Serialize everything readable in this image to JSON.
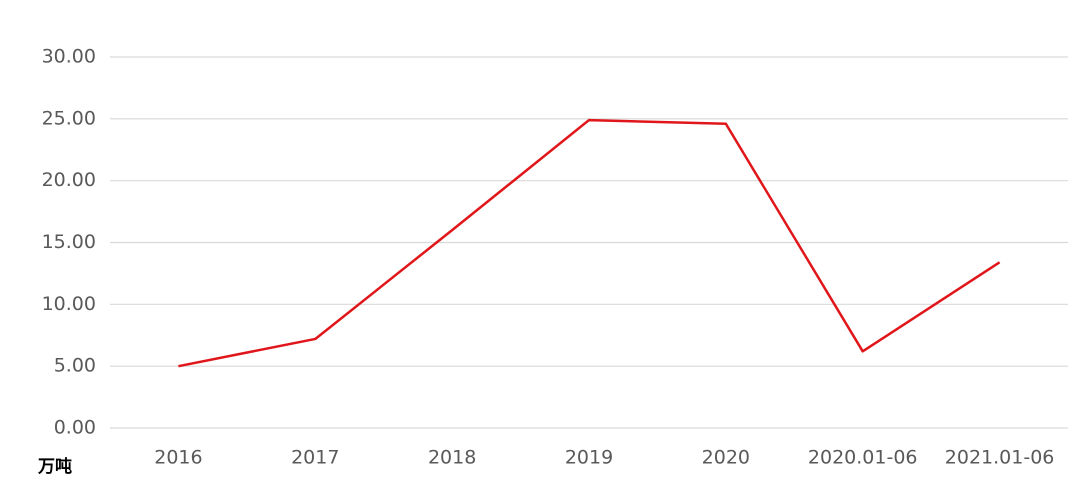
{
  "chart_data": {
    "type": "line",
    "y_unit": "万吨",
    "categories": [
      "2016",
      "2017",
      "2018",
      "2019",
      "2020",
      "2020.01-06",
      "2021.01-06"
    ],
    "series": [
      {
        "color": "#e0161a",
        "values": [
          5.0,
          7.2,
          16.0,
          24.9,
          24.6,
          6.2,
          13.4
        ]
      }
    ],
    "ylim": [
      0,
      30
    ],
    "yticks": [
      {
        "value": 0,
        "label": "0.00"
      },
      {
        "value": 5,
        "label": "5.00"
      },
      {
        "value": 10,
        "label": "10.00"
      },
      {
        "value": 15,
        "label": "15.00"
      },
      {
        "value": 20,
        "label": "20.00"
      },
      {
        "value": 25,
        "label": "25.00"
      },
      {
        "value": 30,
        "label": "30.00"
      }
    ],
    "grid": true
  }
}
